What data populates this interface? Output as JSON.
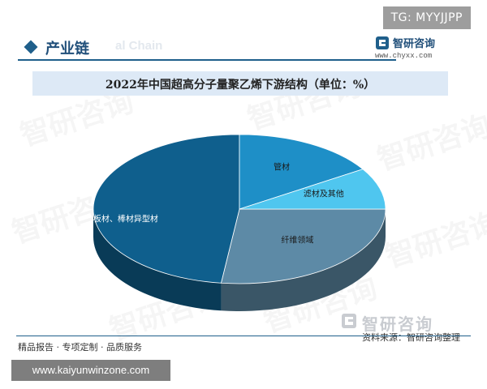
{
  "overlay_tag": "TG: MYYJJPP",
  "header": {
    "title": "产业链",
    "ghost_text": "al Chain"
  },
  "brand": {
    "name": "智研咨询",
    "url": "www.chyxx.com",
    "logo_icon": "zhiyan-logo-icon"
  },
  "chart_data": {
    "type": "pie",
    "title": "2022年中国超高分子量聚乙烯下游结构（单位：%）",
    "slices": [
      {
        "label": "纤维领域",
        "value": 27,
        "color": "#5d8aa6"
      },
      {
        "label": "板材、棒材异型材",
        "value": 48,
        "color": "#0f5f8d"
      },
      {
        "label": "管材",
        "value": 16,
        "color": "#1e8fc7"
      },
      {
        "label": "滤材及其他",
        "value": 9,
        "color": "#4fc6ef"
      }
    ],
    "style": "3d",
    "legend": "none"
  },
  "watermark_text": "智研咨询",
  "source": {
    "brand": "智研咨询",
    "text": "资料来源：智研咨询整理"
  },
  "footer": {
    "text": "精品报告 · 专项定制 · 品质服务"
  },
  "url_overlay": "www.kaiyunwinzone.com"
}
